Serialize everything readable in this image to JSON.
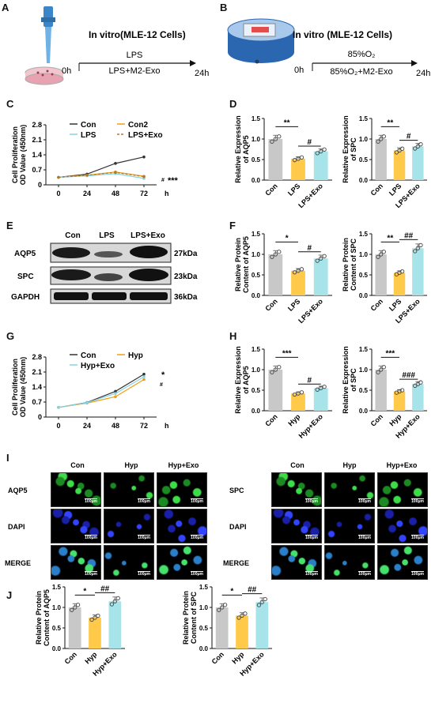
{
  "panels": {
    "A": {
      "letter": "A",
      "title": "In vitro(MLE-12 Cells)",
      "start": "0h",
      "end": "24h",
      "top_label": "LPS",
      "bottom_label": "LPS+M2-Exo"
    },
    "B": {
      "letter": "B",
      "title": "In vitro (MLE-12 Cells)",
      "start": "0h",
      "end": "24h",
      "top_label": "85%O₂",
      "bottom_label": "85%O₂+M2-Exo"
    },
    "C": {
      "letter": "C"
    },
    "D": {
      "letter": "D"
    },
    "E": {
      "letter": "E"
    },
    "F": {
      "letter": "F"
    },
    "G": {
      "letter": "G"
    },
    "H": {
      "letter": "H"
    },
    "I": {
      "letter": "I"
    },
    "J": {
      "letter": "J"
    }
  },
  "western_blot": {
    "lanes": [
      "Con",
      "LPS",
      "LPS+Exo"
    ],
    "rows": [
      {
        "protein": "AQP5",
        "size": "27kDa"
      },
      {
        "protein": "SPC",
        "size": "23kDa"
      },
      {
        "protein": "GAPDH",
        "size": "36kDa"
      }
    ]
  },
  "microscopy": {
    "left": {
      "columns": [
        "Con",
        "Hyp",
        "Hyp+Exo"
      ],
      "rows": [
        "AQP5",
        "DAPI",
        "MERGE"
      ],
      "scale": "100μm"
    },
    "right": {
      "columns": [
        "Con",
        "Hyp",
        "Hyp+Exo"
      ],
      "rows": [
        "SPC",
        "DAPI",
        "MERGE"
      ],
      "scale": "100μm"
    }
  },
  "colors": {
    "con": "#c8c8c8",
    "mid": "#ffc94a",
    "exo": "#a6e4ea",
    "c_con": "#333333",
    "c_lps": "#f39c12",
    "c_lpsexo": "#85d4e3"
  },
  "chart_data": [
    {
      "id": "C",
      "type": "line",
      "xlabel": "h",
      "ylabel": "Cell Proliferation\nOD Value (450nm)",
      "x": [
        0,
        24,
        48,
        72
      ],
      "xticks": [
        "0",
        "24",
        "48",
        "72"
      ],
      "ylim": [
        0,
        2.8
      ],
      "yticks": [
        "0",
        "0.7",
        "1.4",
        "2.1",
        "2.8"
      ],
      "series": [
        {
          "name": "Con",
          "values": [
            0.35,
            0.5,
            1.0,
            1.3
          ]
        },
        {
          "name": "Con2",
          "values": [
            0.35,
            0.45,
            0.6,
            0.4
          ]
        },
        {
          "name": "LPS",
          "values": [
            0.35,
            0.42,
            0.52,
            0.3
          ]
        },
        {
          "name": "LPS+Exo",
          "values": [
            0.35,
            0.45,
            0.58,
            0.38
          ]
        }
      ],
      "annotations": [
        "#",
        "***"
      ]
    },
    {
      "id": "D1",
      "type": "bar",
      "ylabel": "Relative Expression\nof AQP5",
      "categories": [
        "Con",
        "LPS",
        "LPS+Exo"
      ],
      "values": [
        1.0,
        0.52,
        0.7
      ],
      "ylim": [
        0,
        1.5
      ],
      "yticks": [
        "0.0",
        "0.5",
        "1.0",
        "1.5"
      ],
      "sig": [
        {
          "a": 0,
          "b": 1,
          "text": "**"
        },
        {
          "a": 1,
          "b": 2,
          "text": "#"
        }
      ]
    },
    {
      "id": "D2",
      "type": "bar",
      "ylabel": "Relative Expression\nof SPC",
      "categories": [
        "Con",
        "LPS",
        "LPS+Exo"
      ],
      "values": [
        1.0,
        0.72,
        0.82
      ],
      "ylim": [
        0,
        1.5
      ],
      "yticks": [
        "0.0",
        "0.5",
        "1.0",
        "1.5"
      ],
      "sig": [
        {
          "a": 0,
          "b": 1,
          "text": "**"
        },
        {
          "a": 1,
          "b": 2,
          "text": "#"
        }
      ]
    },
    {
      "id": "F1",
      "type": "bar",
      "ylabel": "Relative Protein\nContent of AQP5",
      "categories": [
        "Con",
        "LPS",
        "LPS+Exo"
      ],
      "values": [
        1.0,
        0.6,
        0.9
      ],
      "ylim": [
        0,
        1.5
      ],
      "yticks": [
        "0.0",
        "0.5",
        "1.0",
        "1.5"
      ],
      "sig": [
        {
          "a": 0,
          "b": 1,
          "text": "*"
        },
        {
          "a": 1,
          "b": 2,
          "text": "#"
        }
      ]
    },
    {
      "id": "F2",
      "type": "bar",
      "ylabel": "Relative Protein\nContent of SPC",
      "categories": [
        "Con",
        "LPS",
        "LPS+Exo"
      ],
      "values": [
        1.0,
        0.55,
        1.15
      ],
      "ylim": [
        0,
        1.5
      ],
      "yticks": [
        "0.0",
        "0.5",
        "1.0",
        "1.5"
      ],
      "sig": [
        {
          "a": 0,
          "b": 1,
          "text": "**"
        },
        {
          "a": 1,
          "b": 2,
          "text": "##"
        }
      ]
    },
    {
      "id": "G",
      "type": "line",
      "xlabel": "h",
      "ylabel": "Cell Proliferation\nOD Value (450nm)",
      "x": [
        0,
        24,
        48,
        72
      ],
      "xticks": [
        "0",
        "24",
        "48",
        "72"
      ],
      "ylim": [
        0,
        2.8
      ],
      "yticks": [
        "0",
        "0.7",
        "1.4",
        "2.1",
        "2.8"
      ],
      "series": [
        {
          "name": "Con",
          "values": [
            0.45,
            0.68,
            1.2,
            2.0
          ]
        },
        {
          "name": "Hyp",
          "values": [
            0.45,
            0.65,
            0.95,
            1.75
          ]
        },
        {
          "name": "Hyp+Exo",
          "values": [
            0.45,
            0.67,
            1.1,
            1.88
          ]
        }
      ],
      "annotations": [
        "*",
        "#"
      ]
    },
    {
      "id": "H1",
      "type": "bar",
      "ylabel": "Relative Expression\nof AQP5",
      "categories": [
        "Con",
        "Hyp",
        "Hyp+Exo"
      ],
      "values": [
        1.0,
        0.42,
        0.55
      ],
      "ylim": [
        0,
        1.5
      ],
      "yticks": [
        "0.0",
        "0.5",
        "1.0",
        "1.5"
      ],
      "sig": [
        {
          "a": 0,
          "b": 1,
          "text": "***"
        },
        {
          "a": 1,
          "b": 2,
          "text": "#"
        }
      ]
    },
    {
      "id": "H2",
      "type": "bar",
      "ylabel": "Relative Expression\nof SPC",
      "categories": [
        "Con",
        "Hyp",
        "Hyp+Exo"
      ],
      "values": [
        1.0,
        0.47,
        0.65
      ],
      "ylim": [
        0,
        1.5
      ],
      "yticks": [
        "0.0",
        "0.5",
        "1.0",
        "1.5"
      ],
      "sig": [
        {
          "a": 0,
          "b": 1,
          "text": "***"
        },
        {
          "a": 1,
          "b": 2,
          "text": "###"
        }
      ]
    },
    {
      "id": "J1",
      "type": "bar",
      "ylabel": "Relative Protein\nContent of AQP5",
      "categories": [
        "Con",
        "Hyp",
        "Hyp+Exo"
      ],
      "values": [
        1.0,
        0.75,
        1.15
      ],
      "ylim": [
        0,
        1.5
      ],
      "yticks": [
        "0.0",
        "0.5",
        "1.0",
        "1.5"
      ],
      "sig": [
        {
          "a": 0,
          "b": 1,
          "text": "*"
        },
        {
          "a": 1,
          "b": 2,
          "text": "##"
        }
      ]
    },
    {
      "id": "J2",
      "type": "bar",
      "ylabel": "Relative Protein\nContent of SPC",
      "categories": [
        "Con",
        "Hyp",
        "Hyp+Exo"
      ],
      "values": [
        1.0,
        0.8,
        1.13
      ],
      "ylim": [
        0,
        1.5
      ],
      "yticks": [
        "0.0",
        "0.5",
        "1.0",
        "1.5"
      ],
      "sig": [
        {
          "a": 0,
          "b": 1,
          "text": "*"
        },
        {
          "a": 1,
          "b": 2,
          "text": "##"
        }
      ]
    }
  ]
}
